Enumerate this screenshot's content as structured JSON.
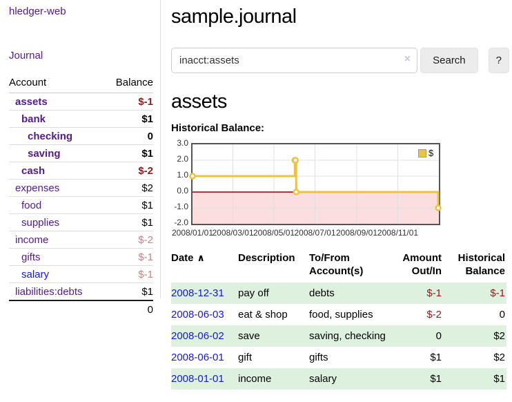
{
  "app": {
    "brand": "hledger-web"
  },
  "sidebar": {
    "journal_link": "Journal",
    "accounts": {
      "headers": [
        "Account",
        "Balance"
      ],
      "rows": [
        {
          "name": "assets",
          "depth": 1,
          "matched": true,
          "balance": "$-1",
          "balance_style": "negative"
        },
        {
          "name": "bank",
          "depth": 2,
          "matched": true,
          "balance": "$1",
          "balance_style": "normal"
        },
        {
          "name": "checking",
          "depth": 3,
          "matched": true,
          "balance": "0",
          "balance_style": "normal"
        },
        {
          "name": "saving",
          "depth": 3,
          "matched": true,
          "balance": "$1",
          "balance_style": "normal"
        },
        {
          "name": "cash",
          "depth": 2,
          "matched": true,
          "balance": "$-2",
          "balance_style": "negative"
        },
        {
          "name": "expenses",
          "depth": 1,
          "matched": false,
          "balance": "$2",
          "balance_style": "normal"
        },
        {
          "name": "food",
          "depth": 2,
          "matched": false,
          "balance": "$1",
          "balance_style": "normal"
        },
        {
          "name": "supplies",
          "depth": 2,
          "matched": false,
          "balance": "$1",
          "balance_style": "normal"
        },
        {
          "name": "income",
          "depth": 1,
          "matched": false,
          "balance": "$-2",
          "balance_style": "muted-negative"
        },
        {
          "name": "gifts",
          "depth": 2,
          "matched": false,
          "balance": "$-1",
          "balance_style": "muted-negative"
        },
        {
          "name": "salary",
          "depth": 2,
          "matched": false,
          "balance": "$-1",
          "balance_style": "muted-negative",
          "link_style": "blue"
        },
        {
          "name": "liabilities:debts",
          "depth": 1,
          "matched": false,
          "balance": "$1",
          "balance_style": "normal"
        }
      ],
      "total": "0"
    }
  },
  "main": {
    "title": "sample.journal",
    "search": {
      "value": "inacct:assets",
      "clear_icon": "×",
      "search_button": "Search",
      "help_button": "?"
    },
    "account_heading": "assets",
    "chart_heading": "Historical Balance:"
  },
  "chart_data": {
    "type": "line",
    "title": "Historical Balance:",
    "series": [
      {
        "name": "$",
        "color": "#EDC240",
        "step": true,
        "points": [
          {
            "x": "2008-01-01",
            "y": 1
          },
          {
            "x": "2008-06-01",
            "y": 2
          },
          {
            "x": "2008-06-02",
            "y": 2
          },
          {
            "x": "2008-06-03",
            "y": 0
          },
          {
            "x": "2008-12-31",
            "y": -1
          }
        ]
      }
    ],
    "xlim": [
      "2008-01-01",
      "2009-01-01"
    ],
    "ylim": [
      -2,
      3
    ],
    "x_ticks": [
      {
        "x": "2008-01-01",
        "label": "2008/01/01"
      },
      {
        "x": "2008-03-01",
        "label": "2008/03/01"
      },
      {
        "x": "2008-05-01",
        "label": "2008/05/01"
      },
      {
        "x": "2008-07-01",
        "label": "2008/07/01"
      },
      {
        "x": "2008-09-01",
        "label": "2008/09/01"
      },
      {
        "x": "2008-11-01",
        "label": "2008/11/01"
      }
    ],
    "y_ticks": [
      {
        "y": 3,
        "label": "3.0"
      },
      {
        "y": 2,
        "label": "2.0"
      },
      {
        "y": 1,
        "label": "1.0"
      },
      {
        "y": 0,
        "label": "0.0"
      },
      {
        "y": -1,
        "label": "-1.0"
      },
      {
        "y": -2,
        "label": "-2.0"
      }
    ],
    "legend": {
      "position": "top-right",
      "entries": [
        {
          "label": "$",
          "color": "#EDC240"
        }
      ]
    },
    "grid": true,
    "grid_color": "#e0e0e0",
    "negative_fill": "#fcdede",
    "zero_line_color": "#8b0000",
    "border_color": "#545454"
  },
  "register": {
    "headers": [
      "Date",
      "Description",
      "To/From Account(s)",
      "Amount Out/In",
      "Historical Balance"
    ],
    "sort_icon": "∧",
    "rows": [
      {
        "date": "2008-12-31",
        "description": "pay off",
        "accounts": "debts",
        "amount": "$-1",
        "amount_negative": true,
        "balance": "$-1",
        "balance_negative": true,
        "shaded": true
      },
      {
        "date": "2008-06-03",
        "description": "eat & shop",
        "accounts": "food, supplies",
        "amount": "$-2",
        "amount_negative": true,
        "balance": "0",
        "balance_negative": false,
        "shaded": false
      },
      {
        "date": "2008-06-02",
        "description": "save",
        "accounts": "saving, checking",
        "amount": "0",
        "amount_negative": false,
        "balance": "$2",
        "balance_negative": false,
        "shaded": true
      },
      {
        "date": "2008-06-01",
        "description": "gift",
        "accounts": "gifts",
        "amount": "$1",
        "amount_negative": false,
        "balance": "$2",
        "balance_negative": false,
        "shaded": false
      },
      {
        "date": "2008-01-01",
        "description": "income",
        "accounts": "salary",
        "amount": "$1",
        "amount_negative": false,
        "balance": "$1",
        "balance_negative": false,
        "shaded": true
      }
    ]
  },
  "colors": {
    "link_purple": "#551A8B",
    "link_blue": "#1517e0",
    "negative": "#8b1d1d",
    "muted_negative": "#c28585",
    "row_green": "#def0de"
  }
}
